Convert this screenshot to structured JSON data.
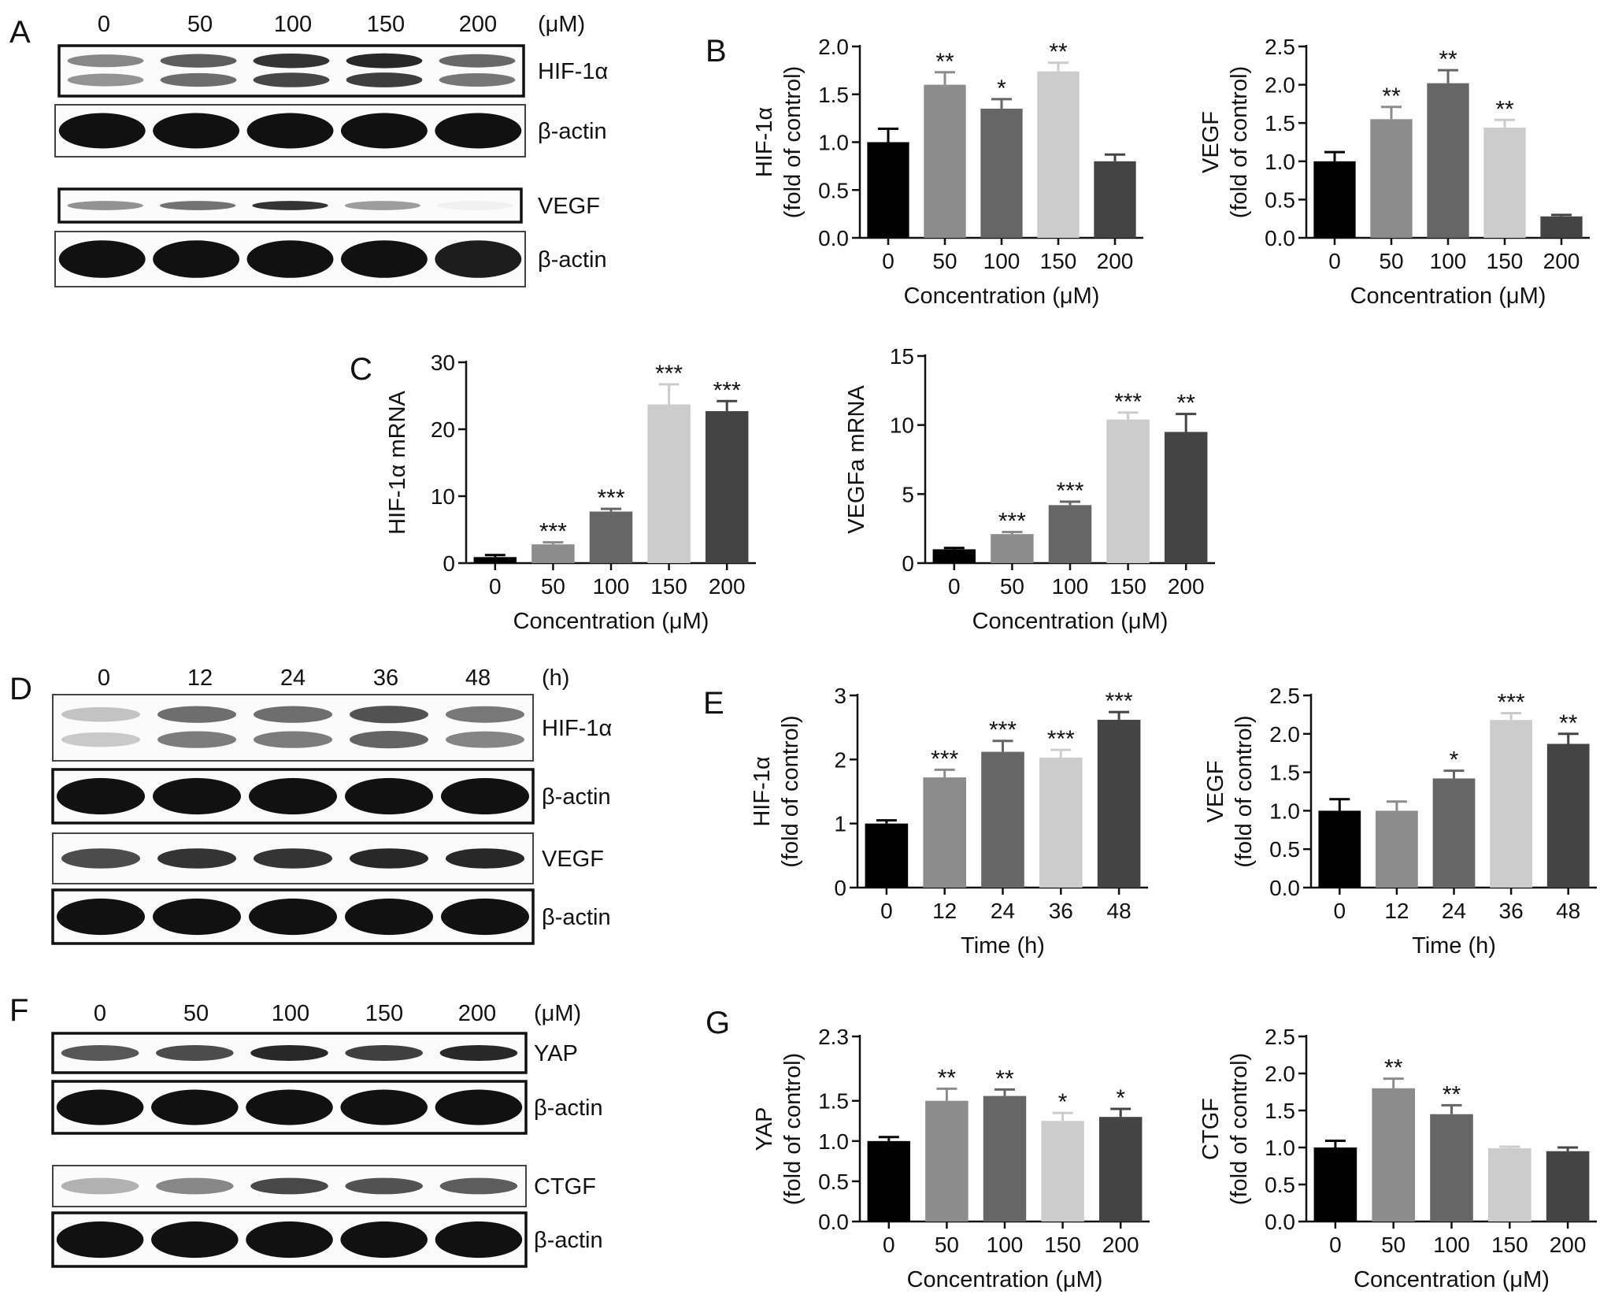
{
  "panels": {
    "A": {
      "letter": "A",
      "lanes": [
        "0",
        "50",
        "100",
        "150",
        "200"
      ],
      "unit": "(μM)",
      "blots": [
        {
          "label": "HIF-1α",
          "band": [
            0.55,
            0.75,
            0.95,
            1.0,
            0.7
          ],
          "style": "doublet",
          "tone": 0.9
        },
        {
          "label": "β-actin",
          "band": [
            1.0,
            1.0,
            1.0,
            1.0,
            1.0
          ],
          "style": "thick",
          "tone": 1.0
        },
        {
          "label": "VEGF",
          "band": [
            0.5,
            0.65,
            0.95,
            0.45,
            0.05
          ],
          "style": "thin",
          "tone": 0.9
        },
        {
          "label": "β-actin",
          "band": [
            1.0,
            1.0,
            1.0,
            1.0,
            0.95
          ],
          "style": "thick",
          "tone": 1.0
        }
      ]
    },
    "D": {
      "letter": "D",
      "lanes": [
        "0",
        "12",
        "24",
        "36",
        "48"
      ],
      "unit": "(h)",
      "blots": [
        {
          "label": "HIF-1α",
          "band": [
            0.3,
            0.75,
            0.75,
            0.9,
            0.7
          ],
          "style": "doublet",
          "tone": 0.8
        },
        {
          "label": "β-actin",
          "band": [
            1.0,
            1.0,
            1.0,
            1.0,
            1.0
          ],
          "style": "thick",
          "tone": 1.0
        },
        {
          "label": "VEGF",
          "band": [
            0.75,
            0.85,
            0.85,
            0.9,
            0.9
          ],
          "style": "medium",
          "tone": 1.0
        },
        {
          "label": "β-actin",
          "band": [
            1.0,
            1.0,
            1.0,
            1.0,
            1.0
          ],
          "style": "thick",
          "tone": 1.0
        }
      ]
    },
    "F": {
      "letter": "F",
      "lanes": [
        "0",
        "50",
        "100",
        "150",
        "200"
      ],
      "unit": "(μM)",
      "blots": [
        {
          "label": "YAP",
          "band": [
            0.7,
            0.75,
            0.9,
            0.8,
            0.9
          ],
          "style": "medium",
          "tone": 1.0
        },
        {
          "label": "β-actin",
          "band": [
            1.0,
            1.0,
            1.0,
            1.0,
            1.0
          ],
          "style": "thick",
          "tone": 1.0
        },
        {
          "label": "CTGF",
          "band": [
            0.35,
            0.55,
            0.85,
            0.8,
            0.75
          ],
          "style": "medium",
          "tone": 0.9
        },
        {
          "label": "β-actin",
          "band": [
            1.0,
            1.0,
            1.0,
            1.0,
            1.0
          ],
          "style": "thick",
          "tone": 1.0
        }
      ]
    },
    "B": {
      "letter": "B"
    },
    "C": {
      "letter": "C"
    },
    "E": {
      "letter": "E"
    },
    "G": {
      "letter": "G"
    }
  },
  "bar_colors": [
    "#000000",
    "#8c8c8c",
    "#666666",
    "#cccccc",
    "#444444"
  ],
  "chart_data": [
    {
      "id": "B1",
      "type": "bar",
      "categories": [
        "0",
        "50",
        "100",
        "150",
        "200"
      ],
      "values": [
        1.0,
        1.6,
        1.35,
        1.74,
        0.8
      ],
      "errors": [
        0.14,
        0.13,
        0.1,
        0.09,
        0.07
      ],
      "stars": [
        "",
        "**",
        "*",
        "**",
        ""
      ],
      "ylabel": [
        "HIF-1α",
        "(fold of control)"
      ],
      "xlabel": "Concentration (μM)",
      "ylim": [
        0,
        2.0
      ],
      "yticks": [
        "0.0",
        "0.5",
        "1.0",
        "1.5",
        "2.0"
      ],
      "ytick_values": [
        0,
        0.5,
        1.0,
        1.5,
        2.0
      ]
    },
    {
      "id": "B2",
      "type": "bar",
      "categories": [
        "0",
        "50",
        "100",
        "150",
        "200"
      ],
      "values": [
        1.0,
        1.55,
        2.02,
        1.44,
        0.28
      ],
      "errors": [
        0.12,
        0.16,
        0.17,
        0.1,
        0.02
      ],
      "stars": [
        "",
        "**",
        "**",
        "**",
        ""
      ],
      "ylabel": [
        "VEGF",
        "(fold of control)"
      ],
      "xlabel": "Concentration (μM)",
      "ylim": [
        0,
        2.5
      ],
      "yticks": [
        "0.0",
        "0.5",
        "1.0",
        "1.5",
        "2.0",
        "2.5"
      ],
      "ytick_values": [
        0,
        0.5,
        1.0,
        1.5,
        2.0,
        2.5
      ]
    },
    {
      "id": "C1",
      "type": "bar",
      "categories": [
        "0",
        "50",
        "100",
        "150",
        "200"
      ],
      "values": [
        0.9,
        2.8,
        7.7,
        23.7,
        22.7
      ],
      "errors": [
        0.3,
        0.3,
        0.4,
        3.0,
        1.5
      ],
      "stars": [
        "",
        "***",
        "***",
        "***",
        "***"
      ],
      "ylabel": [
        "HIF-1α mRNA"
      ],
      "xlabel": "Concentration (μM)",
      "ylim": [
        0,
        30
      ],
      "yticks": [
        "0",
        "10",
        "20",
        "30"
      ],
      "ytick_values": [
        0,
        10,
        20,
        30
      ]
    },
    {
      "id": "C2",
      "type": "bar",
      "categories": [
        "0",
        "50",
        "100",
        "150",
        "200"
      ],
      "values": [
        1.0,
        2.1,
        4.2,
        10.4,
        9.5
      ],
      "errors": [
        0.1,
        0.15,
        0.25,
        0.5,
        1.3
      ],
      "stars": [
        "",
        "***",
        "***",
        "***",
        "**"
      ],
      "ylabel": [
        "VEGFa mRNA"
      ],
      "xlabel": "Concentration (μM)",
      "ylim": [
        0,
        15
      ],
      "yticks": [
        "0",
        "5",
        "10",
        "15"
      ],
      "ytick_values": [
        0,
        5,
        10,
        15
      ]
    },
    {
      "id": "E1",
      "type": "bar",
      "categories": [
        "0",
        "12",
        "24",
        "36",
        "48"
      ],
      "values": [
        1.0,
        1.72,
        2.12,
        2.03,
        2.62
      ],
      "errors": [
        0.05,
        0.12,
        0.17,
        0.12,
        0.12
      ],
      "stars": [
        "",
        "***",
        "***",
        "***",
        "***"
      ],
      "ylabel": [
        "HIF-1α",
        "(fold of control)"
      ],
      "xlabel": "Time (h)",
      "ylim": [
        0,
        3
      ],
      "yticks": [
        "0",
        "1",
        "2",
        "3"
      ],
      "ytick_values": [
        0,
        1,
        2,
        3
      ]
    },
    {
      "id": "E2",
      "type": "bar",
      "categories": [
        "0",
        "12",
        "24",
        "36",
        "48"
      ],
      "values": [
        1.0,
        1.0,
        1.42,
        2.18,
        1.87
      ],
      "errors": [
        0.15,
        0.12,
        0.1,
        0.09,
        0.13
      ],
      "stars": [
        "",
        "",
        "*",
        "***",
        "**"
      ],
      "ylabel": [
        "VEGF",
        "(fold of control)"
      ],
      "xlabel": "Time (h)",
      "ylim": [
        0,
        2.5
      ],
      "yticks": [
        "0.0",
        "0.5",
        "1.0",
        "1.5",
        "2.0",
        "2.5"
      ],
      "ytick_values": [
        0,
        0.5,
        1.0,
        1.5,
        2.0,
        2.5
      ]
    },
    {
      "id": "G1",
      "type": "bar",
      "categories": [
        "0",
        "50",
        "100",
        "150",
        "200"
      ],
      "values": [
        1.0,
        1.5,
        1.56,
        1.25,
        1.3
      ],
      "errors": [
        0.05,
        0.15,
        0.08,
        0.1,
        0.1
      ],
      "stars": [
        "",
        "**",
        "**",
        "*",
        "*"
      ],
      "ylabel": [
        "YAP",
        "(fold of control)"
      ],
      "xlabel": "Concentration (μM)",
      "ylim": [
        0,
        2.3
      ],
      "yticks": [
        "0.0",
        "0.5",
        "1.0",
        "1.5",
        "2.3"
      ],
      "ytick_values": [
        0,
        0.5,
        1.0,
        1.5,
        2.3
      ]
    },
    {
      "id": "G2",
      "type": "bar",
      "categories": [
        "0",
        "50",
        "100",
        "150",
        "200"
      ],
      "values": [
        1.0,
        1.8,
        1.45,
        0.99,
        0.95
      ],
      "errors": [
        0.09,
        0.13,
        0.12,
        0.02,
        0.05
      ],
      "stars": [
        "",
        "**",
        "**",
        "",
        ""
      ],
      "ylabel": [
        "CTGF",
        "(fold of control)"
      ],
      "xlabel": "Concentration (μM)",
      "ylim": [
        0,
        2.5
      ],
      "yticks": [
        "0.0",
        "0.5",
        "1.0",
        "1.5",
        "2.0",
        "2.5"
      ],
      "ytick_values": [
        0,
        0.5,
        1.0,
        1.5,
        2.0,
        2.5
      ]
    }
  ]
}
